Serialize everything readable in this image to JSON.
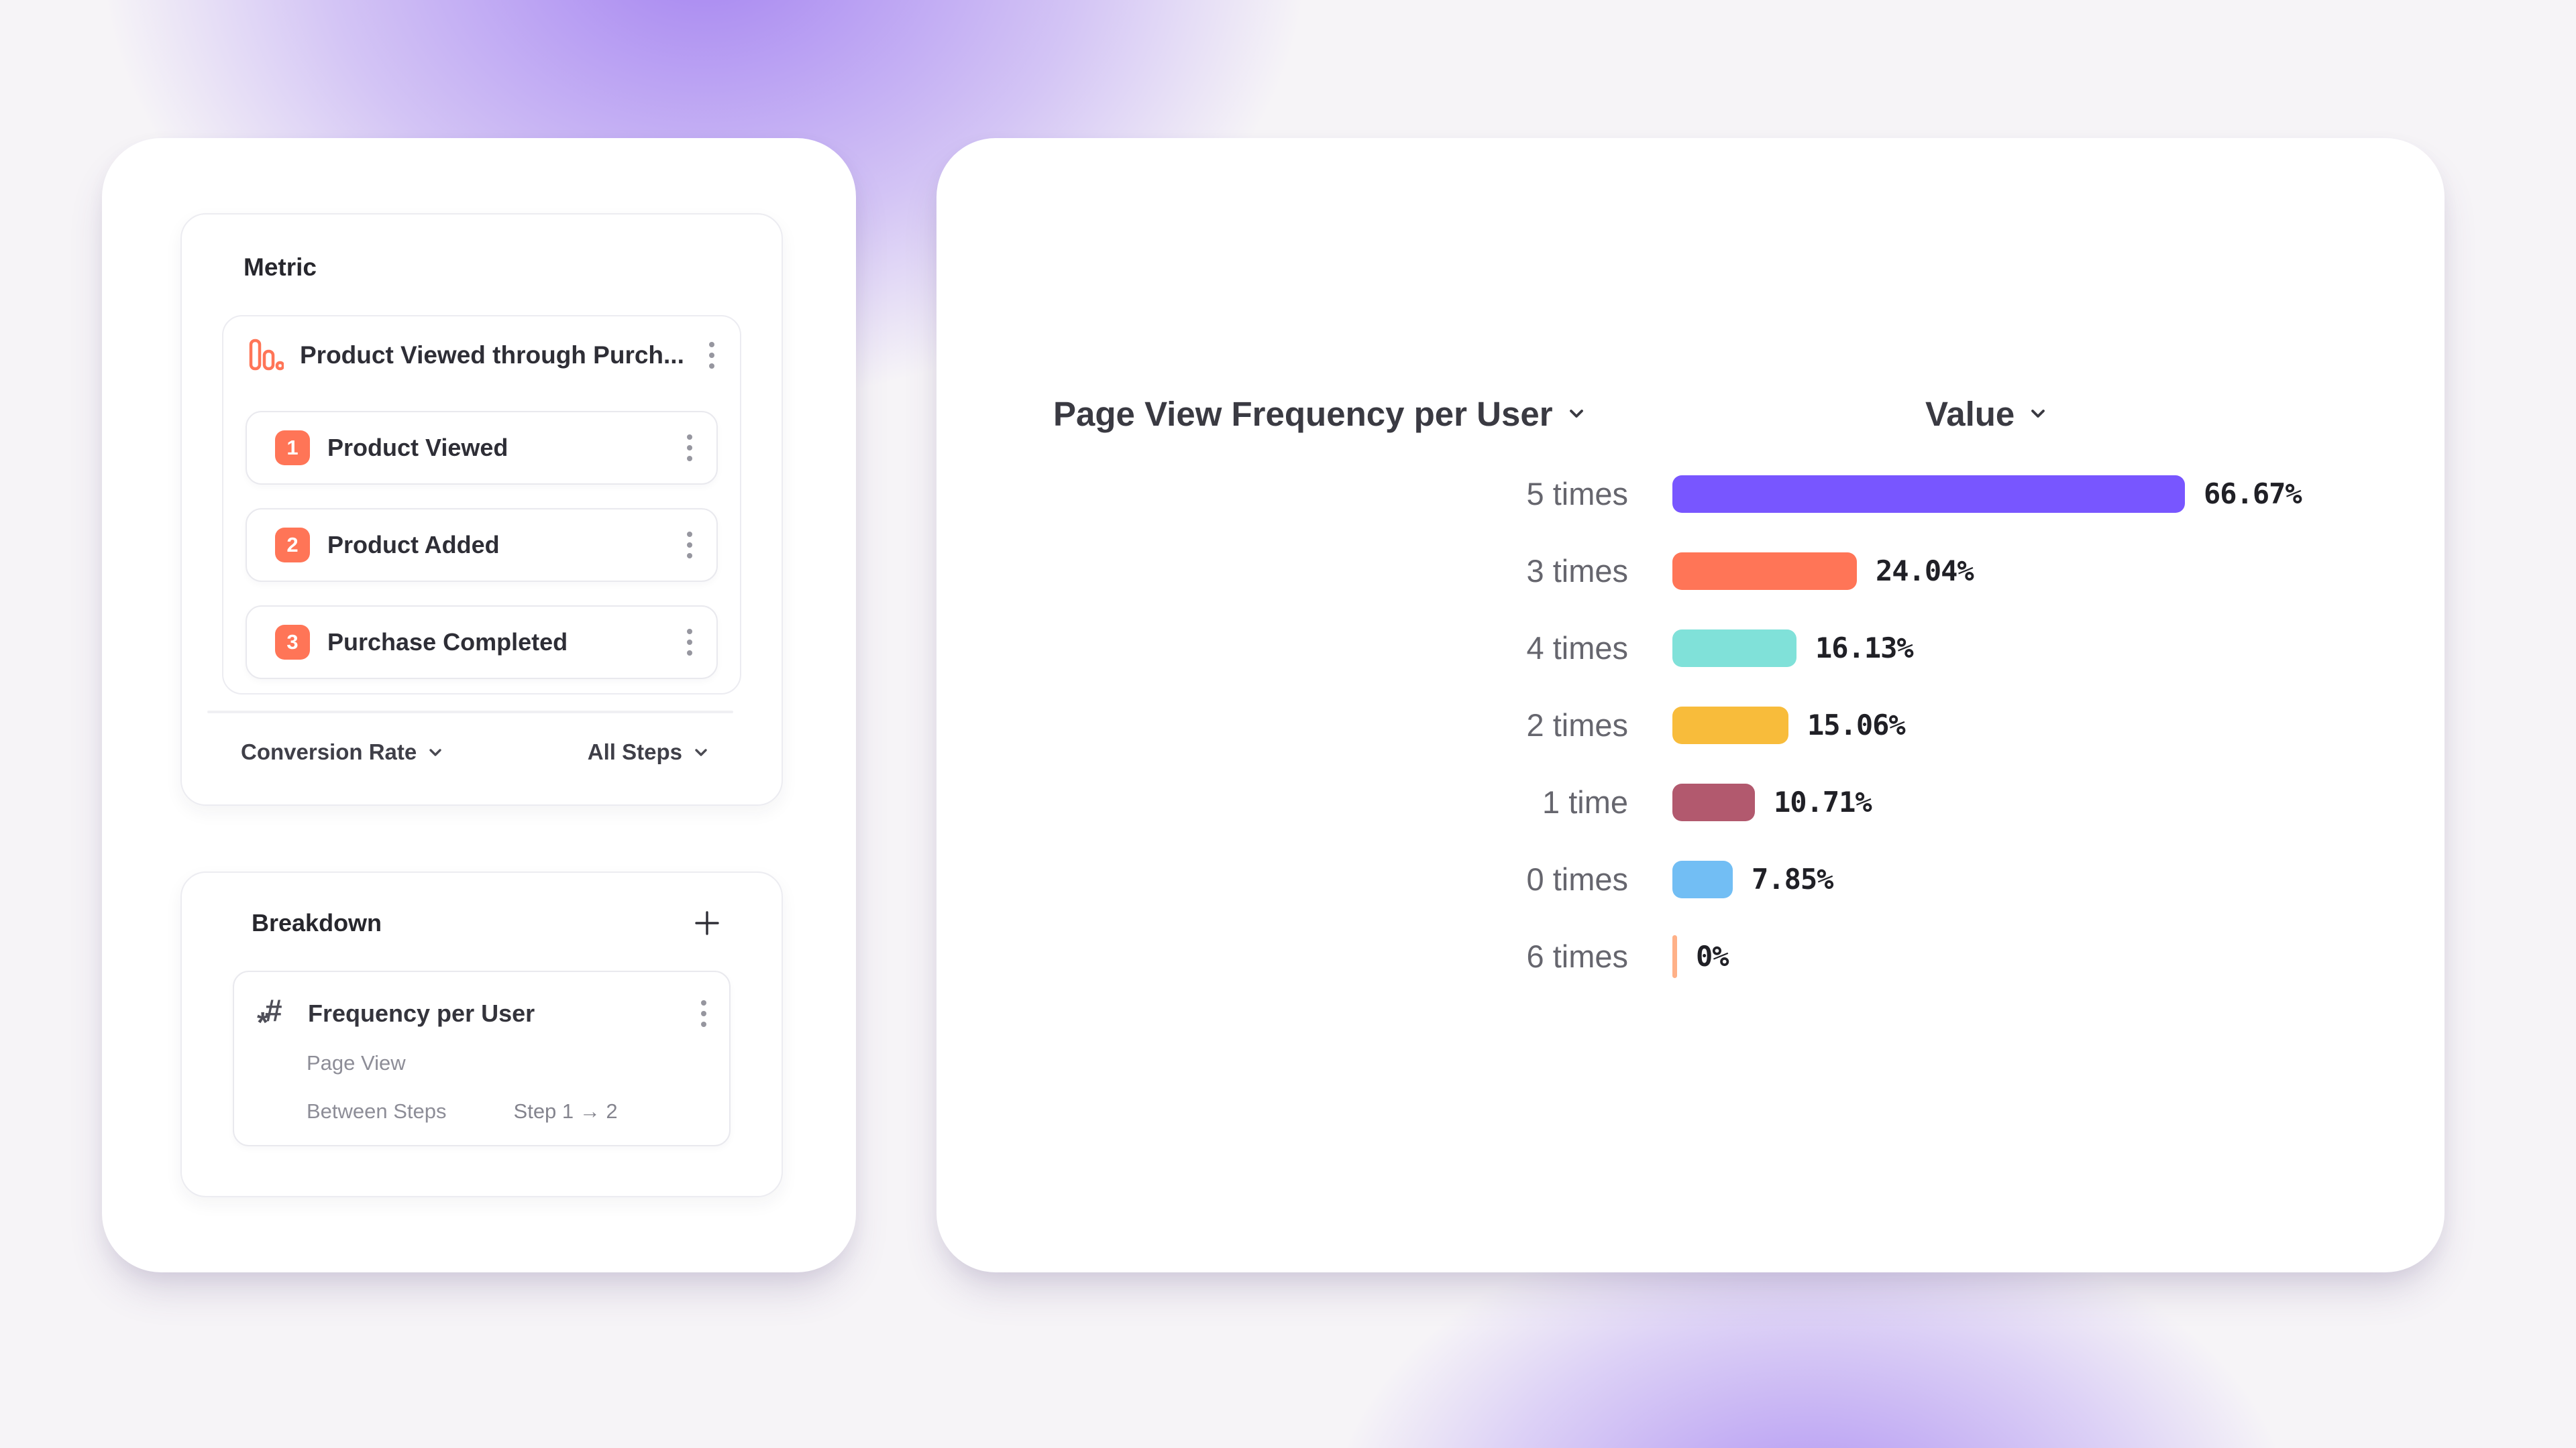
{
  "theme": {
    "accent_coral": "#FF7557",
    "panel_border": "#ececf1",
    "background_glow_purple": "#936BF0",
    "text_dark": "#27272d",
    "text_gray": "#66666e",
    "text_light_gray": "#8d8d97"
  },
  "icons": {
    "metric_icon": "funnel-chart-icon",
    "breakdown_item_icon": "numeric-property-icon",
    "row_menu_icon": "kebab-menu-icon",
    "expand_icon": "chevron-down-icon",
    "add_icon": "plus-icon"
  },
  "metric_panel": {
    "title": "Metric",
    "funnel": {
      "title": "Product Viewed through Purch...",
      "steps": [
        {
          "number": "1",
          "label": "Product Viewed"
        },
        {
          "number": "2",
          "label": "Product Added"
        },
        {
          "number": "3",
          "label": "Purchase Completed"
        }
      ]
    },
    "footer": {
      "measure_label": "Conversion Rate",
      "steps_label": "All Steps"
    }
  },
  "breakdown_panel": {
    "title": "Breakdown",
    "item": {
      "title": "Frequency per User",
      "event": "Page View",
      "scope_label": "Between Steps",
      "scope_value": "Step 1 → 2"
    }
  },
  "chart": {
    "title": "Page View Frequency per User",
    "value_column_label": "Value"
  },
  "chart_data": {
    "type": "bar",
    "orientation": "horizontal",
    "title": "Page View Frequency per User",
    "value_axis_label": "Value",
    "categories": [
      "5 times",
      "3 times",
      "4 times",
      "2 times",
      "1 time",
      "0 times",
      "6 times"
    ],
    "values": [
      66.67,
      24.04,
      16.13,
      15.06,
      10.71,
      7.85,
      0
    ],
    "value_labels": [
      "66.67%",
      "24.04%",
      "16.13%",
      "15.06%",
      "10.71%",
      "7.85%",
      "0%"
    ],
    "bar_colors": [
      "#7856FF",
      "#FF7557",
      "#80E1D9",
      "#F8BC3B",
      "#B2596E",
      "#72BEF4",
      "#FFB188"
    ],
    "unit": "percent",
    "xlim": [
      0,
      100
    ],
    "grid": false,
    "legend": false
  }
}
